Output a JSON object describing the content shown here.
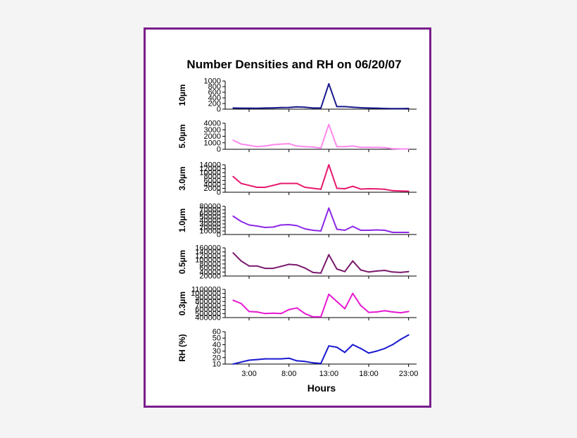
{
  "chart_data": {
    "type": "line",
    "title": "Number Densities and RH on 06/20/07",
    "xlabel": "Hours",
    "x_tick_labels": [
      "3:00",
      "8:00",
      "13:00",
      "18:00",
      "23:00"
    ],
    "x_ticks": [
      3,
      8,
      13,
      18,
      23
    ],
    "xlim": [
      0,
      24
    ],
    "x": [
      1,
      2,
      3,
      4,
      5,
      6,
      7,
      8,
      9,
      10,
      11,
      12,
      13,
      14,
      15,
      16,
      17,
      18,
      19,
      20,
      21,
      22,
      23
    ],
    "panels": [
      {
        "ylabel": "10µm",
        "color": "#1a1a8c",
        "ylim": [
          0,
          1000
        ],
        "y_ticks": [
          0,
          200,
          400,
          600,
          800,
          1000
        ],
        "values": [
          40,
          35,
          35,
          30,
          40,
          45,
          55,
          60,
          80,
          70,
          40,
          40,
          900,
          90,
          90,
          70,
          50,
          40,
          35,
          25,
          20,
          20,
          25
        ]
      },
      {
        "ylabel": "5.0µm",
        "color": "#ff88ee",
        "ylim": [
          0,
          4000
        ],
        "y_ticks": [
          0,
          1000,
          2000,
          3000,
          4000
        ],
        "values": [
          1400,
          800,
          600,
          400,
          500,
          700,
          800,
          850,
          500,
          400,
          350,
          200,
          3800,
          400,
          400,
          500,
          300,
          300,
          300,
          250,
          100,
          50,
          50
        ]
      },
      {
        "ylabel": "3.0µm",
        "color": "#e6196e",
        "ylim": [
          0,
          14000
        ],
        "y_ticks": [
          0,
          2000,
          4000,
          6000,
          8000,
          10000,
          12000,
          14000
        ],
        "values": [
          8000,
          4500,
          3500,
          2500,
          2500,
          3500,
          4500,
          4500,
          4500,
          2500,
          2000,
          1500,
          14000,
          2000,
          1800,
          3000,
          1600,
          1800,
          1700,
          1500,
          800,
          600,
          500
        ]
      },
      {
        "ylabel": "1.0µm",
        "color": "#8c28e6",
        "ylim": [
          0,
          80000
        ],
        "y_ticks": [
          0,
          10000,
          20000,
          30000,
          40000,
          50000,
          60000,
          70000,
          80000
        ],
        "values": [
          52000,
          37000,
          27000,
          24000,
          20000,
          21000,
          27000,
          28000,
          25000,
          16000,
          12000,
          10000,
          75000,
          15000,
          12000,
          23000,
          12000,
          12000,
          13000,
          12000,
          6000,
          6000,
          6000
        ]
      },
      {
        "ylabel": "0.5µm",
        "color": "#7a1a6e",
        "ylim": [
          20000,
          160000
        ],
        "y_ticks": [
          20000,
          40000,
          60000,
          80000,
          100000,
          120000,
          140000,
          160000
        ],
        "values": [
          135000,
          95000,
          70000,
          70000,
          58000,
          58000,
          68000,
          78000,
          75000,
          60000,
          38000,
          35000,
          126000,
          55000,
          42000,
          95000,
          50000,
          40000,
          45000,
          48000,
          40000,
          38000,
          42000
        ]
      },
      {
        "ylabel": "0.3µm",
        "color": "#e619d2",
        "ylim": [
          400000,
          1100000
        ],
        "y_ticks": [
          400000,
          500000,
          600000,
          700000,
          800000,
          900000,
          1000000,
          1100000
        ],
        "values": [
          830000,
          750000,
          550000,
          540000,
          500000,
          510000,
          500000,
          600000,
          640000,
          500000,
          420000,
          420000,
          980000,
          800000,
          620000,
          1000000,
          700000,
          530000,
          540000,
          570000,
          540000,
          520000,
          550000
        ]
      },
      {
        "ylabel": "RH (%)",
        "color": "#1919d2",
        "ylim": [
          10,
          60
        ],
        "y_ticks": [
          10,
          20,
          30,
          40,
          50,
          60
        ],
        "values": [
          10,
          13,
          16,
          17,
          18,
          18,
          18,
          19,
          15,
          14,
          12,
          11,
          38,
          36,
          28,
          40,
          34,
          27,
          30,
          34,
          40,
          48,
          55
        ]
      }
    ]
  }
}
